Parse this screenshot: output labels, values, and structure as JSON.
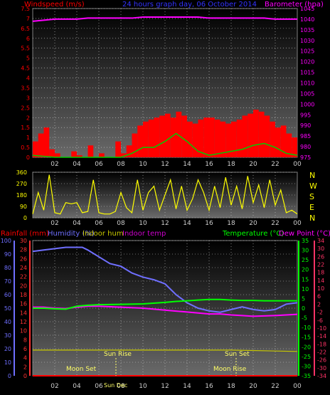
{
  "header": {
    "left_label": "Windspeed (m/s)",
    "title": "24 hours graph day, 06 October 2014",
    "right_label": "Barometer (hpa)"
  },
  "colors": {
    "wind": "#ff0000",
    "gust": "#ff2a2a",
    "avg_wind": "#00cc00",
    "barometer": "#ff00ff",
    "direction": "#ffff00",
    "humidity": "#6f6fff",
    "indoor_hum": "#c8c800",
    "indoor_temp": "#cc00cc",
    "temperature": "#00ff00",
    "dewpoint": "#ff00ff",
    "rain": "#ff0000",
    "title": "#3333ff",
    "grid": "#cfcfcf"
  },
  "x_axis": {
    "ticks": [
      "02",
      "04",
      "06",
      "08",
      "10",
      "12",
      "14",
      "16",
      "18",
      "20",
      "22",
      "00"
    ]
  },
  "panel_wind": {
    "left_ticks": [
      "7.5",
      "7",
      "6.5",
      "6",
      "5.5",
      "5",
      "4.5",
      "4",
      "3.5",
      "3",
      "2.5",
      "2",
      "1.5",
      "1",
      "0.5",
      "0"
    ],
    "right_ticks": [
      "1045",
      "1040",
      "1035",
      "1030",
      "1025",
      "1020",
      "1015",
      "1010",
      "1005",
      "1000",
      "995",
      "990",
      "985",
      "980",
      "975"
    ]
  },
  "panel_dir": {
    "ticks": [
      "360",
      "270",
      "180",
      "90",
      "0"
    ],
    "compass": [
      "N",
      "W",
      "S",
      "E",
      "N"
    ]
  },
  "panel_temp": {
    "labels": {
      "rainfall": "Rainfall (mm)",
      "humidity": "Humidity (%)",
      "indoor_hum": "Indoor hum",
      "indoor_temp": "Indoor temp",
      "temperature": "Temperature (°C)",
      "dewpoint": "Dew Point (°C)"
    },
    "hum_ticks": [
      "100",
      "90",
      "80",
      "70",
      "60",
      "50",
      "40",
      "30",
      "20",
      "10",
      "0"
    ],
    "rain_ticks": [
      "30",
      "28",
      "26",
      "24",
      "22",
      "20",
      "18",
      "16",
      "14",
      "12",
      "10",
      "8",
      "6",
      "4",
      "2",
      "0"
    ],
    "temp_ticks": [
      "35",
      "30",
      "25",
      "20",
      "15",
      "10",
      "5",
      "0",
      "-5",
      "-10",
      "-15",
      "-20",
      "-25",
      "-30",
      "-35"
    ],
    "indoor_ticks": [
      "34",
      "30",
      "26",
      "22",
      "18",
      "14",
      "10",
      "6",
      "2",
      "-2",
      "-6",
      "-10",
      "-14",
      "-18",
      "-22",
      "-26",
      "-30",
      "-34"
    ],
    "annotations": {
      "sun_rise": "Sun Rise",
      "sun_set": "Sun Set",
      "moon_set": "Moon Set",
      "moon_rise": "Moon Rise",
      "sun_dec": "Sun Dec"
    }
  },
  "chart_data": [
    {
      "type": "line",
      "title": "24 hours graph day, 06 October 2014",
      "xlabel": "",
      "ylabel": "Windspeed (m/s)",
      "y2label": "Barometer (hpa)",
      "x_range_hours": [
        0,
        24
      ],
      "ylim": [
        0,
        7.5
      ],
      "y2lim": [
        975,
        1045
      ],
      "grid": true,
      "series": [
        {
          "name": "Barometer (hpa)",
          "axis": "right",
          "x": [
            0,
            1,
            2,
            3,
            4,
            5,
            6,
            7,
            8,
            9,
            10,
            11,
            12,
            13,
            14,
            15,
            16,
            17,
            18,
            19,
            20,
            21,
            22,
            23,
            24
          ],
          "values": [
            1039.0,
            1039.5,
            1040.0,
            1040.0,
            1040.0,
            1040.5,
            1040.5,
            1040.5,
            1040.5,
            1040.5,
            1041.0,
            1041.0,
            1041.0,
            1041.0,
            1041.0,
            1041.0,
            1040.5,
            1040.5,
            1040.5,
            1040.5,
            1040.5,
            1040.5,
            1040.0,
            1040.0,
            1040.0
          ]
        },
        {
          "name": "Windspeed (m/s)",
          "axis": "left",
          "x": [
            0,
            0.5,
            1,
            1.5,
            2,
            2.5,
            3,
            3.5,
            4,
            4.5,
            5,
            5.5,
            6,
            6.5,
            7,
            7.5,
            8,
            8.5,
            9,
            9.5,
            10,
            10.5,
            11,
            11.5,
            12,
            12.5,
            13,
            13.5,
            14,
            14.5,
            15,
            15.5,
            16,
            16.5,
            17,
            17.5,
            18,
            18.5,
            19,
            19.5,
            20,
            20.5,
            21,
            21.5,
            22,
            22.5,
            23,
            23.5,
            24
          ],
          "values": [
            0.8,
            1.2,
            1.5,
            0.4,
            0.2,
            0.0,
            0.0,
            0.3,
            0.1,
            0.0,
            0.6,
            0.0,
            0.2,
            0.0,
            0.0,
            0.8,
            0.2,
            0.6,
            1.2,
            1.6,
            1.8,
            1.9,
            2.0,
            2.1,
            2.2,
            2.0,
            2.3,
            2.1,
            1.8,
            1.7,
            1.9,
            2.0,
            2.0,
            1.9,
            1.8,
            1.7,
            1.8,
            1.9,
            2.1,
            2.2,
            2.4,
            2.3,
            2.1,
            1.8,
            1.5,
            1.6,
            1.2,
            1.0,
            0.9
          ]
        },
        {
          "name": "Average wind",
          "axis": "left",
          "x": [
            0,
            2,
            4,
            6,
            8,
            9,
            10,
            11,
            12,
            13,
            14,
            15,
            16,
            17,
            18,
            19,
            20,
            21,
            22,
            23,
            24
          ],
          "values": [
            0.1,
            0.0,
            0.0,
            0.0,
            0.0,
            0.2,
            0.5,
            0.5,
            0.8,
            1.2,
            0.8,
            0.3,
            0.1,
            0.2,
            0.3,
            0.4,
            0.6,
            0.7,
            0.5,
            0.2,
            0.1
          ]
        }
      ]
    },
    {
      "type": "line",
      "title": "",
      "xlabel": "",
      "ylabel": "",
      "x_range_hours": [
        0,
        24
      ],
      "ylim": [
        0,
        360
      ],
      "grid": true,
      "series": [
        {
          "name": "Wind direction",
          "x": [
            0,
            0.5,
            1,
            1.5,
            2,
            2.5,
            3,
            3.5,
            4,
            4.5,
            5,
            5.5,
            6,
            6.5,
            7,
            7.5,
            8,
            8.5,
            9,
            9.5,
            10,
            10.5,
            11,
            11.5,
            12,
            12.5,
            13,
            13.5,
            14,
            14.5,
            15,
            15.5,
            16,
            16.5,
            17,
            17.5,
            18,
            18.5,
            19,
            19.5,
            20,
            20.5,
            21,
            21.5,
            22,
            22.5,
            23,
            23.5,
            24
          ],
          "values": [
            30,
            200,
            60,
            340,
            40,
            30,
            120,
            110,
            120,
            40,
            50,
            300,
            40,
            30,
            30,
            50,
            200,
            80,
            40,
            300,
            60,
            200,
            250,
            60,
            180,
            300,
            70,
            250,
            60,
            150,
            300,
            200,
            60,
            250,
            80,
            320,
            100,
            250,
            70,
            330,
            120,
            260,
            80,
            300,
            100,
            220,
            40,
            60,
            30
          ]
        }
      ]
    },
    {
      "type": "line",
      "title": "",
      "xlabel": "",
      "ylabel": "Humidity (%)",
      "x_range_hours": [
        0,
        24
      ],
      "ylims": {
        "humidity": [
          0,
          100
        ],
        "rainfall": [
          0,
          30
        ],
        "temperature": [
          -35,
          35
        ],
        "indoor_temp": [
          -34,
          34
        ]
      },
      "grid": true,
      "series": [
        {
          "name": "Humidity (%)",
          "axis": "humidity",
          "x": [
            0,
            1,
            2,
            3,
            4,
            4.5,
            5,
            6,
            7,
            8,
            9,
            10,
            11,
            12,
            13,
            14,
            15,
            16,
            17,
            18,
            19,
            20,
            21,
            22,
            23,
            24
          ],
          "values": [
            92,
            93,
            94,
            95,
            95,
            95,
            93,
            88,
            83,
            81,
            76,
            73,
            71,
            68,
            60,
            54,
            50,
            48,
            47,
            49,
            51,
            49,
            48,
            49,
            53,
            54
          ]
        },
        {
          "name": "Temperature (°C)",
          "axis": "temperature",
          "x": [
            0,
            1,
            2,
            3,
            4,
            5,
            6,
            8,
            10,
            12,
            13,
            14,
            15,
            16,
            17,
            18,
            19,
            20,
            21,
            22,
            23,
            24
          ],
          "values": [
            0.0,
            0.0,
            -0.3,
            -0.5,
            1.0,
            1.5,
            1.8,
            2.0,
            2.2,
            3.0,
            3.5,
            3.8,
            4.2,
            4.5,
            4.5,
            4.2,
            4.0,
            4.0,
            3.8,
            3.8,
            3.8,
            3.8
          ]
        },
        {
          "name": "Dew Point (°C)",
          "axis": "temperature",
          "x": [
            0,
            1,
            2,
            3,
            4,
            5,
            6,
            8,
            10,
            12,
            13,
            14,
            15,
            16,
            17,
            18,
            19,
            20,
            21,
            22,
            23,
            24
          ],
          "values": [
            0.5,
            0.5,
            0.0,
            -0.2,
            0.5,
            1.0,
            1.0,
            0.5,
            0.0,
            -1.0,
            -1.5,
            -2.0,
            -2.5,
            -3.0,
            -3.0,
            -3.5,
            -3.8,
            -4.2,
            -4.0,
            -3.8,
            -3.5,
            -3.2
          ]
        },
        {
          "name": "Indoor hum",
          "axis": "humidity",
          "x": [
            0,
            6,
            12,
            18,
            24
          ],
          "values": [
            19,
            19,
            19,
            19,
            18
          ]
        },
        {
          "name": "Rainfall (mm)",
          "axis": "rainfall",
          "x": [
            0,
            24
          ],
          "values": [
            0,
            0
          ]
        }
      ]
    }
  ]
}
